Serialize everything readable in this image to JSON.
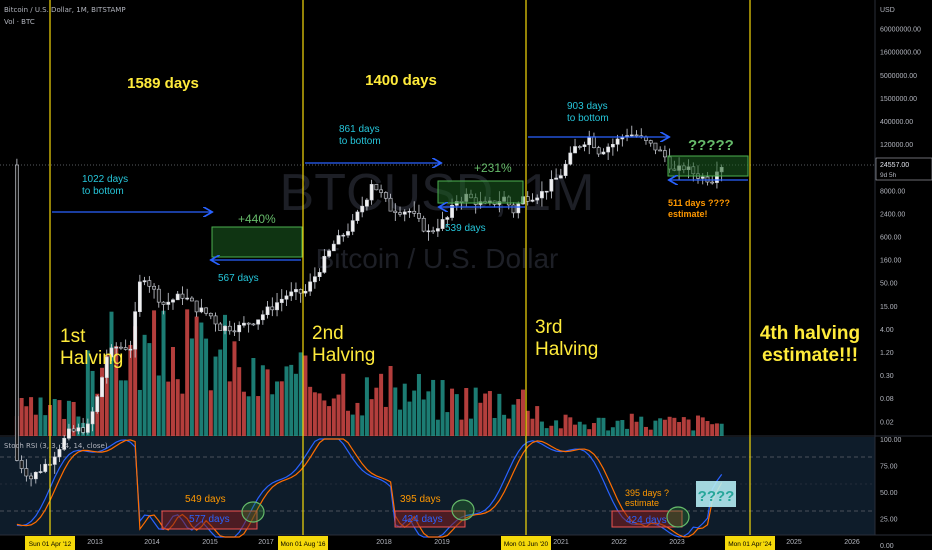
{
  "header": {
    "symbol_line": "Bitcoin / U.S. Dollar, 1M, BITSTAMP",
    "volume_line": "Vol · BTC",
    "rsi_line": "Stoch RSI (3, 3, 14, 14, close)"
  },
  "watermark": {
    "ticker": "BTCUSD, 1M",
    "name": "Bitcoin / U.S. Dollar"
  },
  "price_axis": {
    "unit": "USD",
    "ticks": [
      "60000000.00",
      "16000000.00",
      "5000000.00",
      "1500000.00",
      "400000.00",
      "120000.00",
      "30000.00",
      "8000.00",
      "2400.00",
      "600.00",
      "160.00",
      "50.00",
      "15.00",
      "4.00",
      "1.20",
      "0.30",
      "0.08",
      "0.02"
    ],
    "current_price": "24557.00",
    "countdown": "9d 5h"
  },
  "rsi_axis": {
    "ticks": [
      "100.00",
      "75.00",
      "50.00",
      "25.00",
      "0.00"
    ]
  },
  "time_axis": {
    "labels": [
      "2013",
      "2014",
      "2015",
      "2017",
      "2018",
      "2019",
      "2021",
      "2022",
      "2023",
      "2025",
      "2026"
    ],
    "halving_badges": [
      "Sun 01 Apr '12",
      "Mon 01 Aug '16",
      "Mon 01 Jun '20",
      "Mon 01 Apr '24"
    ]
  },
  "annotations": {
    "halvings": [
      "1st\nHalving",
      "2nd\nHalving",
      "3rd\nHalving",
      "4th halving\nestimate!!!"
    ],
    "cycle_days": [
      "1589 days",
      "1400 days"
    ],
    "to_bottom": [
      "1022 days\nto bottom",
      "861 days\nto bottom",
      "903 days\nto bottom"
    ],
    "gains": [
      "+440%",
      "+231%",
      "?????"
    ],
    "range_days": [
      "567 days",
      "539 days",
      "511 days ????\nestimate!"
    ],
    "rsi_days": [
      "549 days",
      "577 days",
      "395 days",
      "424 days",
      "395 days ?\nestimate",
      "424 days",
      "????"
    ]
  },
  "colors": {
    "halving_line": "#f5d90a",
    "arrow": "#2962ff",
    "up": "#26a69a",
    "down": "#ef5350",
    "label_yellow": "#ffeb3b",
    "label_teal": "#26c6da",
    "label_orange": "#ff9800",
    "k_line": "#2962ff",
    "d_line": "#ff6d00"
  },
  "chart_data": {
    "type": "candlestick",
    "series": [
      {
        "name": "Bitcoin / U.S. Dollar",
        "x": [
          "2012",
          "2013",
          "2014",
          "2015",
          "2016",
          "2017",
          "2018",
          "2019",
          "2020",
          "2021",
          "2022",
          "2023"
        ],
        "y": [
          5,
          200,
          400,
          250,
          650,
          12000,
          4000,
          7000,
          9000,
          50000,
          20000,
          23000
        ]
      },
      {
        "name": "Vol · BTC",
        "x": [
          "2012",
          "2013",
          "2014",
          "2015",
          "2016",
          "2017",
          "2018",
          "2019",
          "2020",
          "2021",
          "2022",
          "2023"
        ],
        "y": [
          0.4,
          0.9,
          0.7,
          0.5,
          0.3,
          0.4,
          0.5,
          0.4,
          0.3,
          0.2,
          0.1,
          0.08
        ]
      },
      {
        "name": "Stoch RSI (3, 3, 14, 14, close)",
        "x": [
          "2012",
          "2013",
          "2014",
          "2015",
          "2016",
          "2017",
          "2018",
          "2019",
          "2020",
          "2021",
          "2022",
          "2023"
        ],
        "y": [
          100,
          100,
          10,
          10,
          95,
          100,
          10,
          60,
          30,
          100,
          10,
          25
        ]
      }
    ],
    "ylim": [
      0.02,
      60000000
    ],
    "ylabel": "USD",
    "log_scale": true,
    "grid": false
  }
}
